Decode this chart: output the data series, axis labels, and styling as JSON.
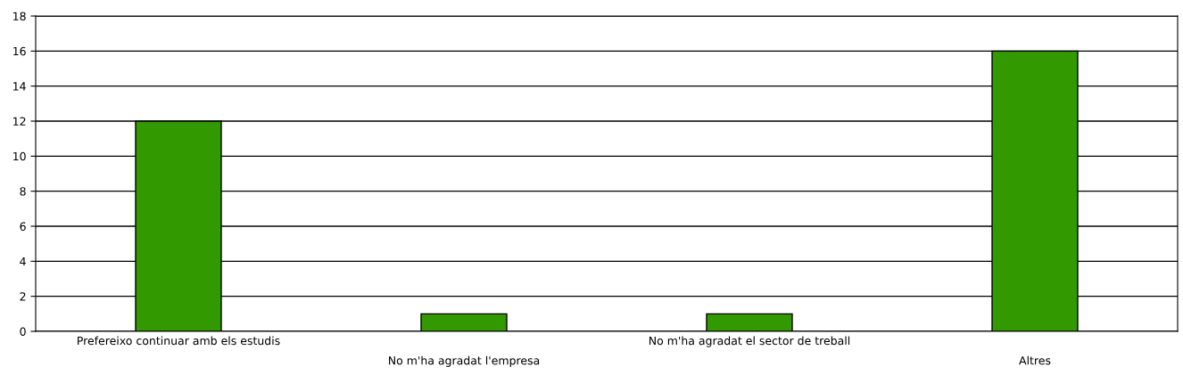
{
  "chart_data": {
    "type": "bar",
    "categories": [
      "Prefereixo continuar amb els estudis",
      "No m'ha agradat l'empresa",
      "No m'ha agradat el sector de treball",
      "Altres"
    ],
    "values": [
      12,
      1,
      1,
      16
    ],
    "color": "#339900",
    "ylim": [
      0,
      18
    ],
    "yticks": [
      0,
      2,
      4,
      6,
      8,
      10,
      12,
      14,
      16,
      18
    ],
    "grid": "y",
    "legend": false
  }
}
